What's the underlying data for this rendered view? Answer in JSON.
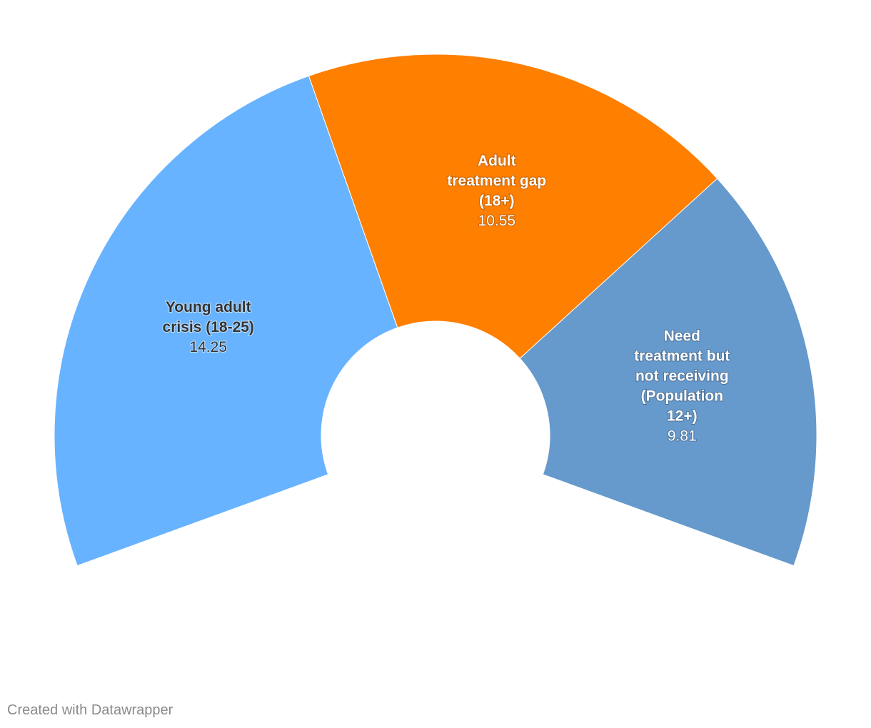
{
  "chart_data": {
    "type": "pie",
    "variant": "semicircle-donut",
    "slices": [
      {
        "name_lines": [
          "Young adult",
          "crisis (18-25)"
        ],
        "value": 14.25,
        "value_label": "14.25",
        "color": "#68b3ff",
        "label_color": "#333333"
      },
      {
        "name_lines": [
          "Adult",
          "treatment gap",
          "(18+)"
        ],
        "value": 10.55,
        "value_label": "10.55",
        "color": "#ff7f00",
        "label_color": "#ffffff"
      },
      {
        "name_lines": [
          "Need",
          "treatment but",
          "not receiving",
          "(Population",
          "12+)"
        ],
        "value": 9.81,
        "value_label": "9.81",
        "color": "#6699cc",
        "label_color": "#ffffff"
      }
    ],
    "legend": "none"
  },
  "footer": {
    "credit": "Created with Datawrapper"
  }
}
